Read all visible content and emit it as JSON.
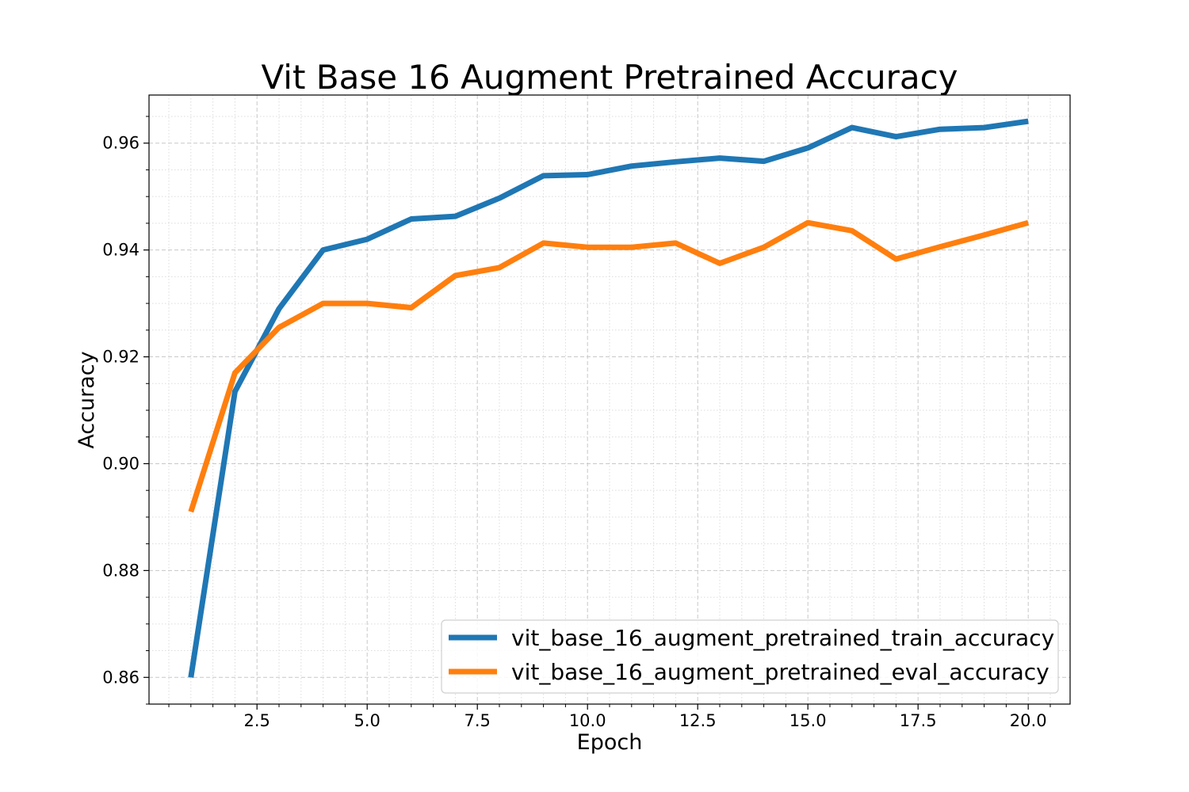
{
  "chart_data": {
    "type": "line",
    "title": "Vit Base 16 Augment Pretrained Accuracy",
    "xlabel": "Epoch",
    "ylabel": "Accuracy",
    "xlim": [
      0.05,
      20.95
    ],
    "ylim": [
      0.855,
      0.969
    ],
    "xticks": [
      2.5,
      5.0,
      7.5,
      10.0,
      12.5,
      15.0,
      17.5,
      20.0
    ],
    "xtick_labels": [
      "2.5",
      "5.0",
      "7.5",
      "10.0",
      "12.5",
      "15.0",
      "17.5",
      "20.0"
    ],
    "yticks": [
      0.86,
      0.88,
      0.9,
      0.92,
      0.94,
      0.96
    ],
    "ytick_labels": [
      "0.86",
      "0.88",
      "0.90",
      "0.92",
      "0.94",
      "0.96"
    ],
    "grid": true,
    "legend_position": "lower-right",
    "x": [
      1,
      2,
      3,
      4,
      5,
      6,
      7,
      8,
      9,
      10,
      11,
      12,
      13,
      14,
      15,
      16,
      17,
      18,
      19,
      20
    ],
    "series": [
      {
        "name": "vit_base_16_augment_pretrained_train_accuracy",
        "color": "#1f77b4",
        "values": [
          0.86,
          0.9135,
          0.929,
          0.94,
          0.942,
          0.9458,
          0.9463,
          0.9497,
          0.9539,
          0.9541,
          0.9557,
          0.9565,
          0.9572,
          0.9566,
          0.9591,
          0.9629,
          0.9612,
          0.9626,
          0.9629,
          0.9641
        ]
      },
      {
        "name": "vit_base_16_augment_pretrained_eval_accuracy",
        "color": "#ff7f0e",
        "values": [
          0.891,
          0.917,
          0.9255,
          0.93,
          0.93,
          0.9292,
          0.9352,
          0.9367,
          0.9413,
          0.9405,
          0.9405,
          0.9413,
          0.9375,
          0.9405,
          0.9451,
          0.9436,
          0.9383,
          0.9406,
          0.9428,
          0.9451
        ]
      }
    ]
  }
}
